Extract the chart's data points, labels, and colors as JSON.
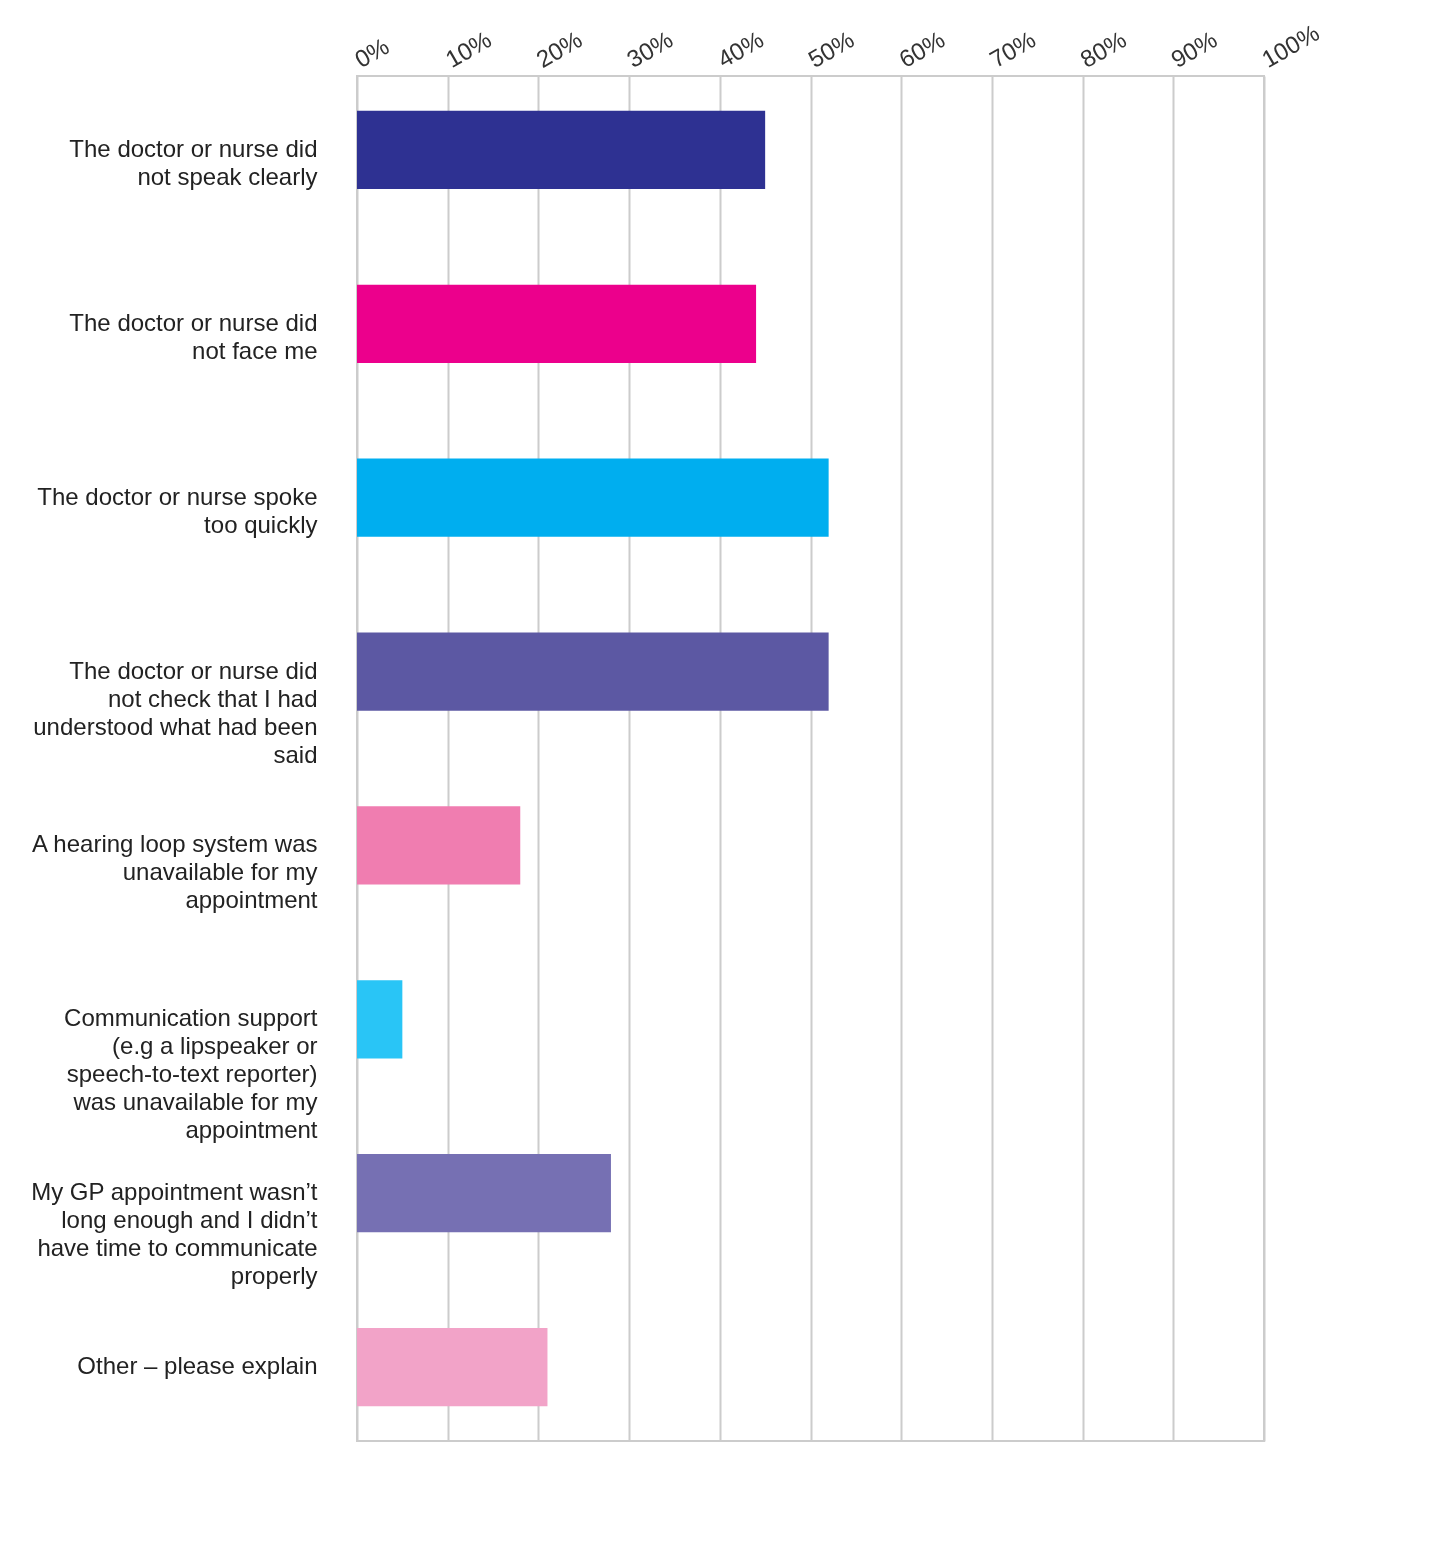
{
  "chart_data": {
    "type": "bar",
    "orientation": "horizontal",
    "categories": [
      "The doctor or nurse did not speak clearly",
      "The doctor or nurse did not face me",
      "The doctor or nurse spoke too quickly",
      "The doctor or nurse did not check that I had understood what had been said",
      "A hearing loop system was unavailable for my appointment",
      "Communication support (e.g a lipspeaker or speech-to-text reporter) was unavailable for my appointment",
      "My GP appointment wasn’t long enough and I didn’t have time to communicate properly",
      "Other – please explain"
    ],
    "values": [
      45,
      44,
      52,
      52,
      18,
      5,
      28,
      21
    ],
    "colors": [
      "#2e3192",
      "#ec008c",
      "#00aeef",
      "#5c58a3",
      "#f07db0",
      "#29c5f6",
      "#7670b3",
      "#f2a3c8"
    ],
    "xlim": [
      0,
      100
    ],
    "xticks": [
      {
        "value": 0,
        "label": "0%"
      },
      {
        "value": 10,
        "label": "10%"
      },
      {
        "value": 20,
        "label": "20%"
      },
      {
        "value": 30,
        "label": "30%"
      },
      {
        "value": 40,
        "label": "40%"
      },
      {
        "value": 50,
        "label": "50%"
      },
      {
        "value": 60,
        "label": "60%"
      },
      {
        "value": 70,
        "label": "70%"
      },
      {
        "value": 80,
        "label": "80%"
      },
      {
        "value": 90,
        "label": "90%"
      },
      {
        "value": 100,
        "label": "100%"
      }
    ],
    "grid": "x"
  }
}
